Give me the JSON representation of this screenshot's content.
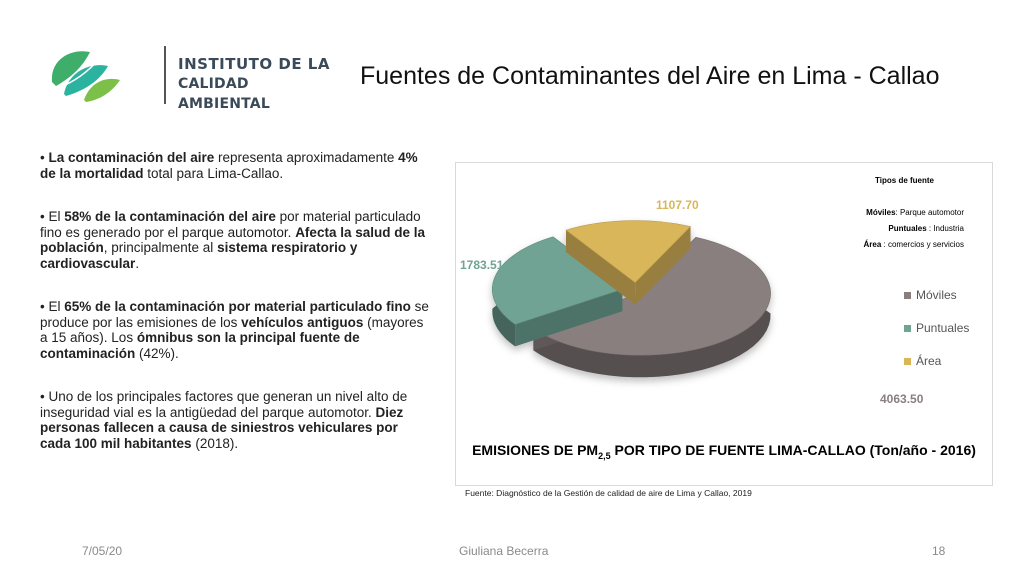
{
  "logo": {
    "line1": "INSTITUTO DE LA",
    "line2": "CALIDAD AMBIENTAL"
  },
  "title": "Fuentes de Contaminantes del Aire en Lima - Callao",
  "bullets": [
    {
      "segments": [
        {
          "text": "La contaminación del aire",
          "bold": true
        },
        {
          "text": " representa aproximadamente ",
          "bold": false
        },
        {
          "text": "4% de la mortalidad",
          "bold": true
        },
        {
          "text": " total para Lima-Callao.",
          "bold": false
        }
      ]
    },
    {
      "segments": [
        {
          "text": "El ",
          "bold": false
        },
        {
          "text": "58% de la contaminación del aire",
          "bold": true
        },
        {
          "text": " por material particulado fino es generado por el parque automotor. ",
          "bold": false
        },
        {
          "text": "Afecta la salud de la población",
          "bold": true
        },
        {
          "text": ", principalmente al ",
          "bold": false
        },
        {
          "text": "sistema respiratorio y cardiovascular",
          "bold": true
        },
        {
          "text": ".",
          "bold": false
        }
      ]
    },
    {
      "segments": [
        {
          "text": "El ",
          "bold": false
        },
        {
          "text": "65% de la contaminación por material particulado fino",
          "bold": true
        },
        {
          "text": " se produce por las emisiones de los ",
          "bold": false
        },
        {
          "text": "vehículos antiguos",
          "bold": true
        },
        {
          "text": " (mayores a 15 años). Los ",
          "bold": false
        },
        {
          "text": "ómnibus son la principal fuente de contaminación",
          "bold": true
        },
        {
          "text": " (42%).",
          "bold": false
        }
      ]
    },
    {
      "segments": [
        {
          "text": "Uno de los principales factores que generan un nivel alto de inseguridad vial es la antigüedad del parque automotor. ",
          "bold": false
        },
        {
          "text": "Diez personas fallecen a causa de siniestros vehiculares por cada 100 mil habitantes",
          "bold": true
        },
        {
          "text": " (2018).",
          "bold": false
        }
      ]
    }
  ],
  "chart_data": {
    "type": "pie",
    "title_main": "EMISIONES DE PM",
    "title_sub": "2,5",
    "title_rest": " POR TIPO DE FUENTE LIMA-CALLAO (Ton/año - 2016)",
    "categories": [
      "Móviles",
      "Puntuales",
      "Área"
    ],
    "values": [
      4063.5,
      1783.51,
      1107.7
    ],
    "value_labels": [
      "4063.50",
      "1783.51",
      "1107.70"
    ],
    "colors": [
      "#8a7f7f",
      "#6fa394",
      "#d9b65a"
    ],
    "legend_position": "right",
    "info_box": {
      "heading": "Tipos de fuente",
      "lines": [
        {
          "bold": "Móviles",
          "rest": ": Parque automotor"
        },
        {
          "bold": "Puntuales",
          "rest": " : Industria"
        },
        {
          "bold": "Área",
          "rest": " : comercios y servicios"
        }
      ]
    }
  },
  "source": "Fuente: Diagnóstico de la Gestión de calidad de aire de Lima y Callao, 2019",
  "footer": {
    "date": "7/05/20",
    "author": "Giuliana Becerra",
    "page": "18"
  }
}
